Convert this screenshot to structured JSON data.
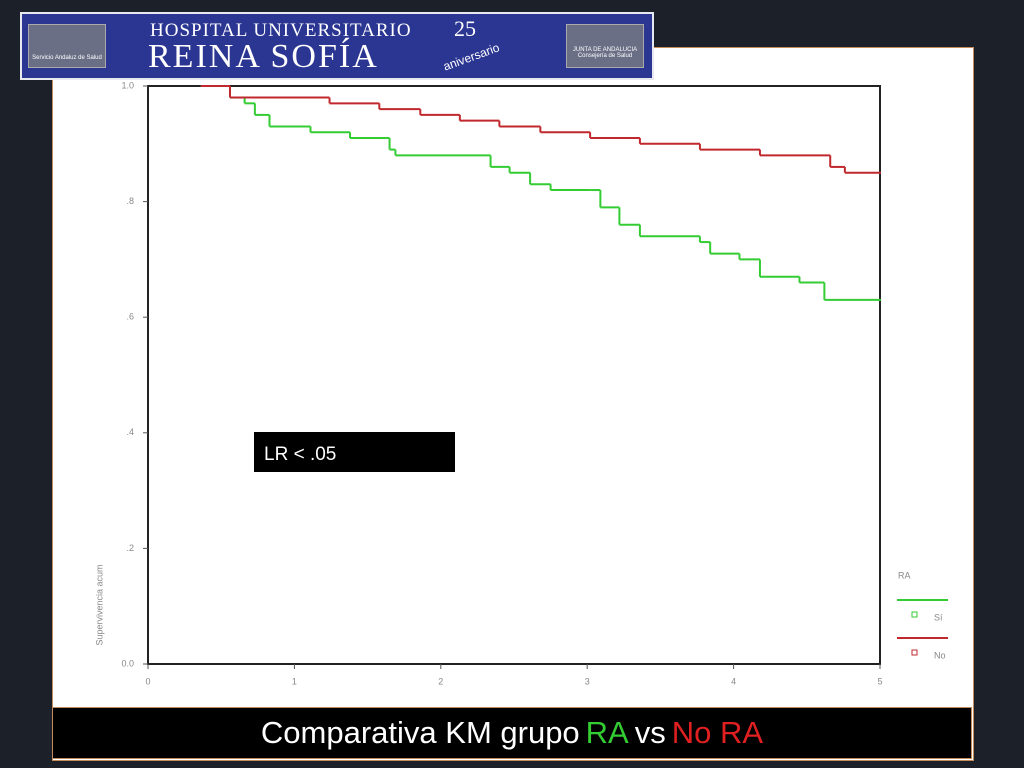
{
  "header": {
    "line1": "HOSPITAL UNIVERSITARIO",
    "line2": "REINA SOFÍA",
    "badge_number": "25",
    "badge_text": "aniversario",
    "left_logo": "Servicio Andaluz de Salud",
    "right_logo_top": "JUNTA DE ANDALUCIA",
    "right_logo_bottom": "Consejería de Salud"
  },
  "chart_data": {
    "type": "line",
    "step": "post",
    "title": [
      {
        "text": "Comparativa KM grupo",
        "color": "#ffffff"
      },
      {
        "text": "RA",
        "color": "#33cc33"
      },
      {
        "text": "vs",
        "color": "#ffffff"
      },
      {
        "text": "No RA",
        "color": "#e02020"
      }
    ],
    "y_label": "Supervivencia acum",
    "annotation": "LR < .05",
    "legend_title": "RA",
    "xlim": [
      0,
      5
    ],
    "xticks": [
      0,
      1,
      2,
      3,
      4,
      5
    ],
    "ylim": [
      0,
      1
    ],
    "yticks": [
      {
        "value": 0,
        "label": "0.0"
      },
      {
        "value": 0.2,
        "label": ".2"
      },
      {
        "value": 0.4,
        "label": ".4"
      },
      {
        "value": 0.6,
        "label": ".6"
      },
      {
        "value": 0.8,
        "label": ".8"
      },
      {
        "value": 1,
        "label": "1.0"
      }
    ],
    "series": [
      {
        "name": "Sí",
        "color": "#33cc33",
        "x": [
          0.36,
          0.56,
          0.66,
          0.73,
          0.83,
          1.11,
          1.38,
          1.65,
          1.69,
          2.34,
          2.47,
          2.61,
          2.75,
          3.02,
          3.09,
          3.22,
          3.36,
          3.77,
          3.84,
          4.04,
          4.18,
          4.45,
          4.62,
          5.0
        ],
        "values": [
          1.0,
          0.98,
          0.97,
          0.95,
          0.93,
          0.92,
          0.91,
          0.89,
          0.88,
          0.86,
          0.85,
          0.83,
          0.82,
          0.82,
          0.79,
          0.76,
          0.74,
          0.73,
          0.71,
          0.7,
          0.67,
          0.66,
          0.63,
          0.63
        ]
      },
      {
        "name": "No",
        "color": "#c0282d",
        "x": [
          0.36,
          0.56,
          1.24,
          1.58,
          1.86,
          2.13,
          2.4,
          2.68,
          3.02,
          3.36,
          3.77,
          4.18,
          4.66,
          4.76,
          5.0
        ],
        "values": [
          1.0,
          0.98,
          0.97,
          0.96,
          0.95,
          0.94,
          0.93,
          0.92,
          0.91,
          0.9,
          0.89,
          0.88,
          0.86,
          0.85,
          0.85
        ]
      }
    ]
  }
}
